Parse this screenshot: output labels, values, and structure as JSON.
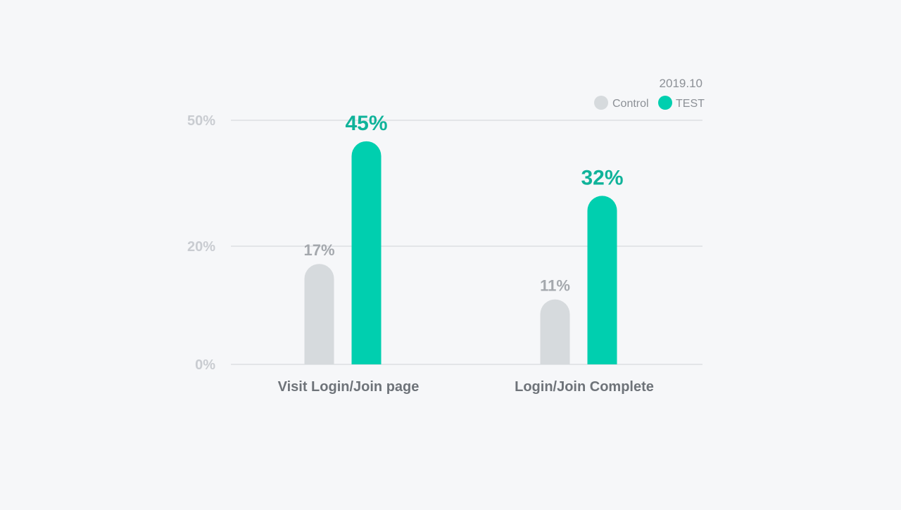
{
  "date": "2019.10",
  "colors": {
    "control": "#d6dadd",
    "test": "#00cfaf",
    "grid": "#e3e5e8"
  },
  "chart_data": {
    "type": "bar",
    "title": "",
    "xlabel": "",
    "ylabel": "",
    "categories": [
      "Visit Login/Join page",
      "Login/Join Complete"
    ],
    "series": [
      {
        "name": "Control",
        "values": [
          17,
          11
        ],
        "labels": [
          "17%",
          "11%"
        ]
      },
      {
        "name": "TEST",
        "values": [
          45,
          32
        ],
        "labels": [
          "45%",
          "32%"
        ]
      }
    ],
    "y_ticks": [
      {
        "value": 0,
        "label": "0%"
      },
      {
        "value": 20,
        "label": "20%"
      },
      {
        "value": 50,
        "label": "50%"
      }
    ],
    "ylim": [
      0,
      50
    ],
    "grid": true,
    "legend": "top-right",
    "note": "Visual baseline-to-50% axis uses nonlinear tick spacing (20% tick sits near the middle)."
  }
}
